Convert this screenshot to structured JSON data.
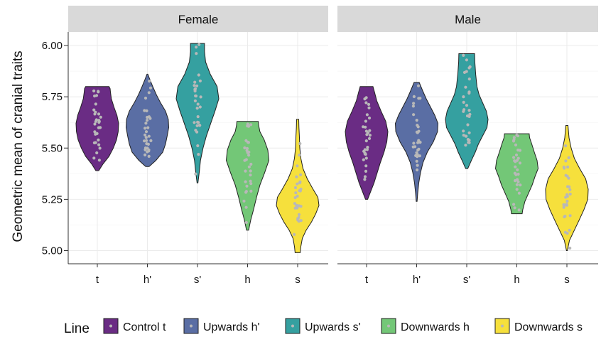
{
  "chart_data": {
    "type": "violin",
    "ylabel": "Geometric mean of cranial traits",
    "ylim": [
      4.95,
      6.06
    ],
    "yticks": [
      "5.00",
      "5.25",
      "5.50",
      "5.75",
      "6.00"
    ],
    "grid": true,
    "categories": [
      "t",
      "h'",
      "s'",
      "h",
      "s"
    ],
    "facets": [
      "Female",
      "Male"
    ],
    "legend": {
      "title": "Line",
      "position": "bottom",
      "entries": [
        "Control t",
        "Upwards h'",
        "Upwards s'",
        "Downwards h",
        "Downwards s"
      ]
    },
    "colors": [
      "#6a2c84",
      "#5a6ea4",
      "#35a0a0",
      "#73c777",
      "#f6e03c"
    ],
    "violins": [
      {
        "facet": "Female",
        "category": "t",
        "min": 5.39,
        "max": 5.8,
        "profile": [
          [
            5.39,
            0.07
          ],
          [
            5.42,
            0.25
          ],
          [
            5.46,
            0.55
          ],
          [
            5.5,
            0.75
          ],
          [
            5.54,
            0.9
          ],
          [
            5.58,
            0.98
          ],
          [
            5.62,
            1.0
          ],
          [
            5.66,
            0.92
          ],
          [
            5.7,
            0.78
          ],
          [
            5.74,
            0.66
          ],
          [
            5.77,
            0.62
          ],
          [
            5.79,
            0.6
          ],
          [
            5.8,
            0.55
          ]
        ]
      },
      {
        "facet": "Female",
        "category": "h'",
        "min": 5.41,
        "max": 5.86,
        "profile": [
          [
            5.41,
            0.08
          ],
          [
            5.44,
            0.4
          ],
          [
            5.48,
            0.72
          ],
          [
            5.52,
            0.85
          ],
          [
            5.56,
            0.93
          ],
          [
            5.6,
            1.0
          ],
          [
            5.64,
            0.98
          ],
          [
            5.68,
            0.85
          ],
          [
            5.72,
            0.62
          ],
          [
            5.76,
            0.42
          ],
          [
            5.8,
            0.25
          ],
          [
            5.83,
            0.13
          ],
          [
            5.86,
            0.02
          ]
        ]
      },
      {
        "facet": "Female",
        "category": "s'",
        "min": 5.33,
        "max": 6.01,
        "profile": [
          [
            5.33,
            0.02
          ],
          [
            5.38,
            0.08
          ],
          [
            5.44,
            0.14
          ],
          [
            5.5,
            0.26
          ],
          [
            5.56,
            0.42
          ],
          [
            5.62,
            0.62
          ],
          [
            5.68,
            0.82
          ],
          [
            5.74,
            1.0
          ],
          [
            5.8,
            0.92
          ],
          [
            5.86,
            0.6
          ],
          [
            5.92,
            0.38
          ],
          [
            5.97,
            0.33
          ],
          [
            6.01,
            0.33
          ]
        ]
      },
      {
        "facet": "Female",
        "category": "h",
        "min": 5.1,
        "max": 5.63,
        "profile": [
          [
            5.1,
            0.05
          ],
          [
            5.15,
            0.15
          ],
          [
            5.2,
            0.28
          ],
          [
            5.26,
            0.42
          ],
          [
            5.32,
            0.58
          ],
          [
            5.38,
            0.8
          ],
          [
            5.44,
            1.0
          ],
          [
            5.49,
            0.95
          ],
          [
            5.54,
            0.78
          ],
          [
            5.58,
            0.58
          ],
          [
            5.61,
            0.52
          ],
          [
            5.63,
            0.5
          ]
        ]
      },
      {
        "facet": "Female",
        "category": "s",
        "min": 4.99,
        "max": 5.64,
        "profile": [
          [
            4.99,
            0.12
          ],
          [
            5.02,
            0.15
          ],
          [
            5.06,
            0.22
          ],
          [
            5.1,
            0.4
          ],
          [
            5.14,
            0.65
          ],
          [
            5.18,
            0.85
          ],
          [
            5.22,
            1.0
          ],
          [
            5.26,
            0.95
          ],
          [
            5.3,
            0.72
          ],
          [
            5.35,
            0.45
          ],
          [
            5.4,
            0.25
          ],
          [
            5.45,
            0.15
          ],
          [
            5.5,
            0.1
          ],
          [
            5.56,
            0.08
          ],
          [
            5.6,
            0.06
          ],
          [
            5.64,
            0.05
          ]
        ]
      },
      {
        "facet": "Male",
        "category": "t",
        "min": 5.25,
        "max": 5.8,
        "profile": [
          [
            5.25,
            0.05
          ],
          [
            5.29,
            0.2
          ],
          [
            5.33,
            0.35
          ],
          [
            5.38,
            0.5
          ],
          [
            5.43,
            0.65
          ],
          [
            5.48,
            0.82
          ],
          [
            5.53,
            0.95
          ],
          [
            5.58,
            1.0
          ],
          [
            5.63,
            0.9
          ],
          [
            5.68,
            0.68
          ],
          [
            5.73,
            0.48
          ],
          [
            5.77,
            0.38
          ],
          [
            5.8,
            0.3
          ]
        ]
      },
      {
        "facet": "Male",
        "category": "h'",
        "min": 5.24,
        "max": 5.82,
        "profile": [
          [
            5.24,
            0.02
          ],
          [
            5.28,
            0.05
          ],
          [
            5.33,
            0.1
          ],
          [
            5.38,
            0.18
          ],
          [
            5.43,
            0.3
          ],
          [
            5.48,
            0.5
          ],
          [
            5.53,
            0.78
          ],
          [
            5.58,
            0.98
          ],
          [
            5.62,
            1.0
          ],
          [
            5.66,
            0.85
          ],
          [
            5.7,
            0.65
          ],
          [
            5.74,
            0.45
          ],
          [
            5.78,
            0.28
          ],
          [
            5.82,
            0.12
          ]
        ]
      },
      {
        "facet": "Male",
        "category": "s'",
        "min": 5.4,
        "max": 5.96,
        "profile": [
          [
            5.4,
            0.05
          ],
          [
            5.44,
            0.22
          ],
          [
            5.48,
            0.4
          ],
          [
            5.52,
            0.55
          ],
          [
            5.56,
            0.75
          ],
          [
            5.6,
            0.95
          ],
          [
            5.64,
            1.0
          ],
          [
            5.68,
            0.92
          ],
          [
            5.72,
            0.75
          ],
          [
            5.76,
            0.58
          ],
          [
            5.8,
            0.48
          ],
          [
            5.86,
            0.42
          ],
          [
            5.92,
            0.38
          ],
          [
            5.96,
            0.37
          ]
        ]
      },
      {
        "facet": "Male",
        "category": "h",
        "min": 5.18,
        "max": 5.57,
        "profile": [
          [
            5.18,
            0.25
          ],
          [
            5.2,
            0.28
          ],
          [
            5.24,
            0.38
          ],
          [
            5.28,
            0.55
          ],
          [
            5.32,
            0.72
          ],
          [
            5.36,
            0.85
          ],
          [
            5.4,
            1.0
          ],
          [
            5.44,
            0.95
          ],
          [
            5.48,
            0.82
          ],
          [
            5.52,
            0.7
          ],
          [
            5.55,
            0.6
          ],
          [
            5.57,
            0.58
          ]
        ]
      },
      {
        "facet": "Male",
        "category": "s",
        "min": 5.0,
        "max": 5.61,
        "profile": [
          [
            5.0,
            0.02
          ],
          [
            5.05,
            0.12
          ],
          [
            5.1,
            0.35
          ],
          [
            5.15,
            0.58
          ],
          [
            5.2,
            0.8
          ],
          [
            5.25,
            0.98
          ],
          [
            5.3,
            1.0
          ],
          [
            5.35,
            0.88
          ],
          [
            5.4,
            0.6
          ],
          [
            5.45,
            0.35
          ],
          [
            5.5,
            0.2
          ],
          [
            5.55,
            0.1
          ],
          [
            5.61,
            0.05
          ]
        ]
      }
    ]
  }
}
